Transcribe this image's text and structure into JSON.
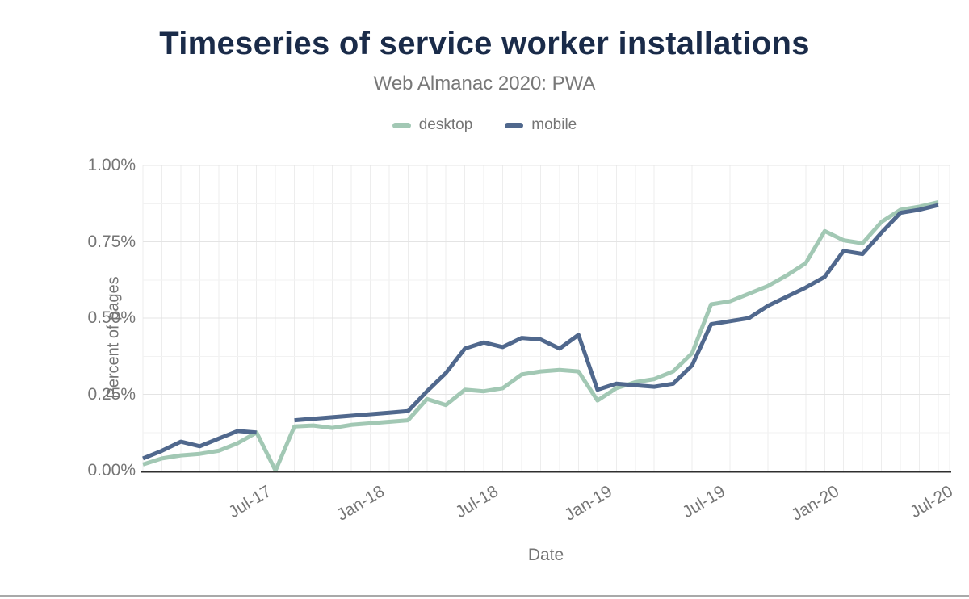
{
  "chart_data": {
    "type": "line",
    "title": "Timeseries of service worker installations",
    "subtitle": "Web Almanac 2020: PWA",
    "xlabel": "Date",
    "ylabel": "Percent of pages",
    "ylim": [
      0,
      1.0
    ],
    "units": "percent of pages (%)",
    "grid": "major and minor horizontal lines, monthly vertical lines",
    "legend_position": "top-center",
    "x": [
      "2017-01",
      "2017-02",
      "2017-03",
      "2017-04",
      "2017-05",
      "2017-06",
      "2017-07",
      "2017-08",
      "2017-09",
      "2017-10",
      "2017-11",
      "2017-12",
      "2018-01",
      "2018-02",
      "2018-03",
      "2018-04",
      "2018-05",
      "2018-06",
      "2018-07",
      "2018-08",
      "2018-09",
      "2018-10",
      "2018-11",
      "2018-12",
      "2019-01",
      "2019-02",
      "2019-03",
      "2019-04",
      "2019-05",
      "2019-06",
      "2019-07",
      "2019-08",
      "2019-09",
      "2019-10",
      "2019-11",
      "2019-12",
      "2020-01",
      "2020-02",
      "2020-03",
      "2020-04",
      "2020-05",
      "2020-06",
      "2020-07"
    ],
    "series": [
      {
        "name": "desktop",
        "color": "#a2c8b4",
        "values": [
          0.02,
          0.04,
          0.05,
          0.055,
          0.065,
          0.09,
          0.125,
          0.0,
          0.145,
          0.148,
          0.14,
          0.15,
          0.155,
          0.16,
          0.165,
          0.235,
          0.215,
          0.265,
          0.26,
          0.27,
          0.315,
          0.325,
          0.33,
          0.325,
          0.23,
          0.27,
          0.29,
          0.3,
          0.325,
          0.385,
          0.545,
          0.555,
          0.58,
          0.605,
          0.64,
          0.68,
          0.785,
          0.755,
          0.745,
          0.815,
          0.855,
          0.865,
          0.88
        ]
      },
      {
        "name": "mobile",
        "color": "#50688d",
        "values": [
          0.04,
          0.065,
          0.095,
          0.08,
          0.105,
          0.13,
          0.125,
          null,
          0.165,
          0.17,
          0.175,
          0.18,
          0.185,
          0.19,
          0.195,
          0.26,
          0.32,
          0.4,
          0.42,
          0.405,
          0.435,
          0.43,
          0.4,
          0.445,
          0.265,
          0.285,
          0.28,
          0.275,
          0.285,
          0.345,
          0.48,
          0.49,
          0.5,
          0.54,
          0.57,
          0.6,
          0.635,
          0.72,
          0.71,
          0.78,
          0.845,
          0.855,
          0.87
        ]
      }
    ],
    "y_ticks": [
      {
        "label": "1.00%",
        "value": 1.0
      },
      {
        "label": "0.75%",
        "value": 0.75
      },
      {
        "label": "0.50%",
        "value": 0.5
      },
      {
        "label": "0.25%",
        "value": 0.25
      },
      {
        "label": "0.00%",
        "value": 0.0
      }
    ],
    "x_ticks": [
      {
        "label": "Jul-17",
        "month_index": 6
      },
      {
        "label": "Jan-18",
        "month_index": 12
      },
      {
        "label": "Jul-18",
        "month_index": 18
      },
      {
        "label": "Jan-19",
        "month_index": 24
      },
      {
        "label": "Jul-19",
        "month_index": 30
      },
      {
        "label": "Jan-20",
        "month_index": 36
      },
      {
        "label": "Jul-20",
        "month_index": 42
      }
    ]
  },
  "colors": {
    "title": "#1a2b49",
    "subtitle": "#787878",
    "tick_text": "#757575",
    "axis_line": "#2f2f2f",
    "grid_major": "#e4e4e4",
    "grid_minor": "#f2f2f2",
    "grid_vertical": "#ededed"
  }
}
